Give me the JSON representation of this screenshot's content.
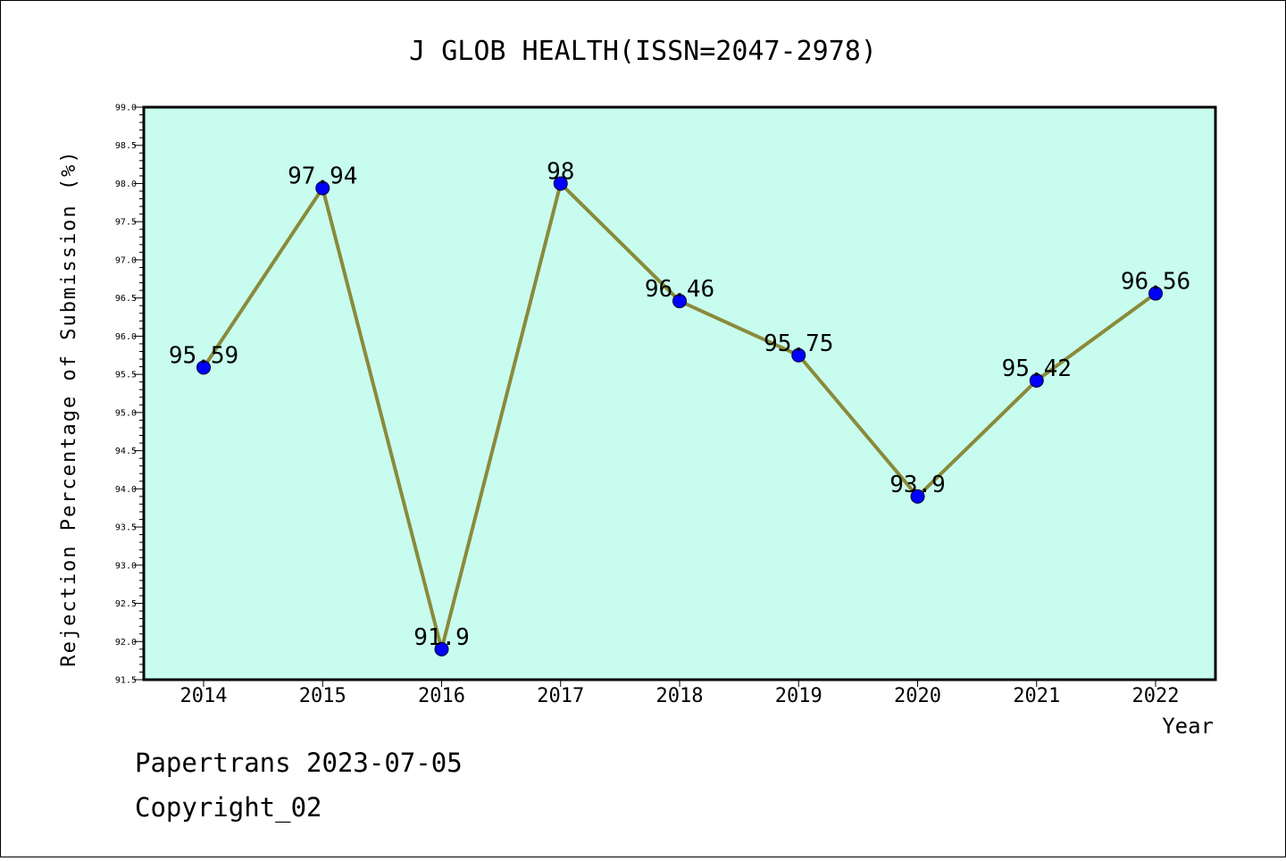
{
  "chart_data": {
    "type": "line",
    "title": "J GLOB HEALTH(ISSN=2047-2978)",
    "xlabel": "Year",
    "ylabel": "Rejection Percentage of Submission (%)",
    "categories": [
      "2014",
      "2015",
      "2016",
      "2017",
      "2018",
      "2019",
      "2020",
      "2021",
      "2022"
    ],
    "series": [
      {
        "values": [
          95.59,
          97.94,
          91.9,
          98,
          96.46,
          95.75,
          93.9,
          95.42,
          96.56
        ]
      }
    ],
    "data_labels": [
      "95.59",
      "97.94",
      "91.9",
      "98",
      "96.46",
      "95.75",
      "93.9",
      "95.42",
      "96.56"
    ],
    "ylim": [
      91.5,
      99.0
    ],
    "yticks": [
      "91.5",
      "92.0",
      "92.5",
      "93.0",
      "93.5",
      "94.0",
      "94.5",
      "95.0",
      "95.5",
      "96.0",
      "96.5",
      "97.0",
      "97.5",
      "98.0",
      "98.5",
      "99.0"
    ],
    "grid": false,
    "legend": "none",
    "colors": {
      "plot_background": "#c8fcee",
      "line": "#8a8a3a",
      "marker": "#0000ff"
    }
  },
  "footer": {
    "line1": "Papertrans 2023-07-05",
    "line2": "Copyright_02"
  }
}
